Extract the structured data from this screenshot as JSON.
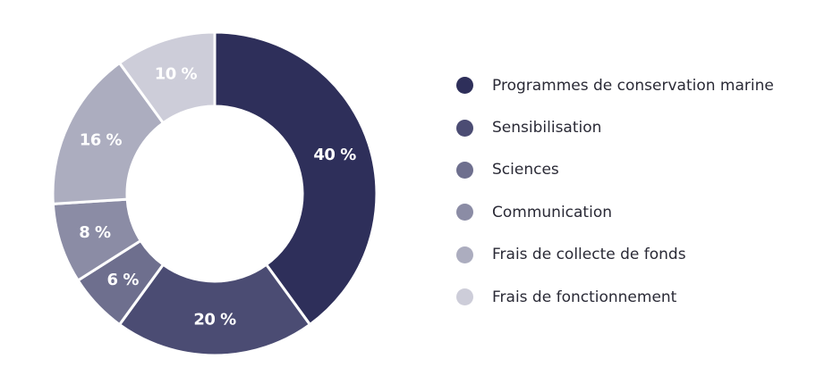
{
  "chart_data": {
    "type": "pie",
    "variant": "donut",
    "title": "",
    "categories": [
      "Programmes de conservation marine",
      "Sensibilisation",
      "Sciences",
      "Communication",
      "Frais de collecte de fonds",
      "Frais de fonctionnement"
    ],
    "values": [
      40,
      20,
      6,
      8,
      16,
      10
    ],
    "value_labels": [
      "40 %",
      "20 %",
      "6 %",
      "8 %",
      "16 %",
      "10 %"
    ],
    "colors": [
      "#2e2f5a",
      "#4b4c73",
      "#6e6f8e",
      "#8b8ca5",
      "#acadbf",
      "#cdcdd9"
    ],
    "legend_position": "right",
    "start_angle_deg": 0,
    "direction": "clockwise"
  }
}
